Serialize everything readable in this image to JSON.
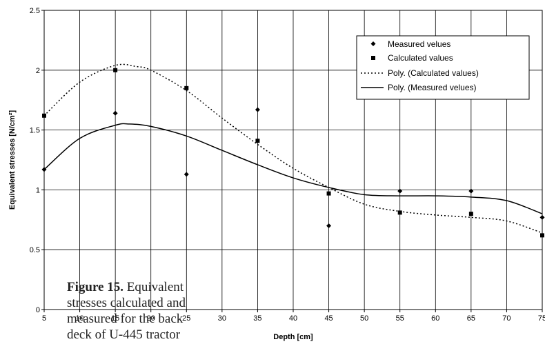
{
  "chart_data": {
    "type": "scatter",
    "xlabel": "Depth [cm]",
    "ylabel": "Equivalent stresses [N/cm²]",
    "xlim": [
      5,
      75
    ],
    "ylim": [
      0,
      2.5
    ],
    "x_ticks": [
      "5",
      "10",
      "15",
      "20",
      "25",
      "30",
      "35",
      "40",
      "45",
      "50",
      "55",
      "60",
      "65",
      "70",
      "75"
    ],
    "y_ticks": [
      "0",
      "0.5",
      "1",
      "1.5",
      "2",
      "2.5"
    ],
    "grid": true,
    "legend_position": "top-right",
    "series": [
      {
        "name": "Measured velues",
        "kind": "points",
        "marker": "diamond",
        "x": [
          5,
          15,
          25,
          35,
          45,
          55,
          65,
          75
        ],
        "y": [
          1.17,
          1.64,
          1.13,
          1.67,
          0.7,
          0.99,
          0.99,
          0.77
        ]
      },
      {
        "name": "Calculated values",
        "kind": "points",
        "marker": "square",
        "x": [
          5,
          15,
          25,
          35,
          45,
          55,
          65,
          75
        ],
        "y": [
          1.62,
          2.0,
          1.85,
          1.41,
          0.97,
          0.81,
          0.8,
          0.62
        ]
      },
      {
        "name": "Poly. (Calculated values)",
        "kind": "trendline",
        "style": "dotted",
        "x": [
          5,
          10,
          15,
          18,
          20,
          25,
          30,
          35,
          40,
          45,
          50,
          55,
          60,
          65,
          70,
          75
        ],
        "y": [
          1.62,
          1.9,
          2.04,
          2.03,
          2.0,
          1.83,
          1.6,
          1.38,
          1.18,
          1.02,
          0.88,
          0.82,
          0.79,
          0.77,
          0.74,
          0.64
        ]
      },
      {
        "name": "Poly. (Measured velues)",
        "kind": "trendline",
        "style": "solid",
        "x": [
          5,
          10,
          15,
          17,
          20,
          25,
          30,
          35,
          40,
          45,
          50,
          55,
          60,
          65,
          70,
          75
        ],
        "y": [
          1.17,
          1.43,
          1.54,
          1.55,
          1.53,
          1.45,
          1.33,
          1.21,
          1.1,
          1.02,
          0.96,
          0.95,
          0.95,
          0.94,
          0.91,
          0.8
        ]
      }
    ]
  },
  "caption": {
    "label": "Figure 15.",
    "text": "Equivalent stresses calculated and measured for the back deck of U-445 tractor"
  }
}
